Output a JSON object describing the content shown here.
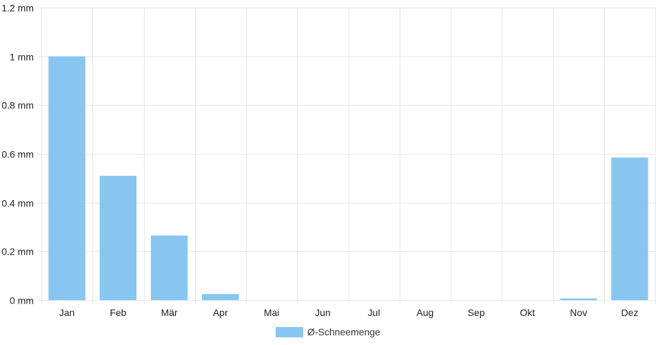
{
  "chart_data": {
    "type": "bar",
    "categories": [
      "Jan",
      "Feb",
      "Mär",
      "Apr",
      "Mai",
      "Jun",
      "Jul",
      "Aug",
      "Sep",
      "Okt",
      "Nov",
      "Dez"
    ],
    "series": [
      {
        "name": "Ø-Schneemenge",
        "values": [
          1.0,
          0.51,
          0.265,
          0.025,
          0,
          0,
          0,
          0,
          0,
          0,
          0.007,
          0.585
        ]
      }
    ],
    "ylim": [
      0,
      1.2
    ],
    "yticks": [
      0,
      0.2,
      0.4,
      0.6,
      0.8,
      1,
      1.2
    ],
    "ytick_labels": [
      "0 mm",
      "0.2 mm",
      "0.4 mm",
      "0.6 mm",
      "0.8 mm",
      "1 mm",
      "1.2 mm"
    ],
    "grid": true,
    "legend_position": "bottom",
    "colors": {
      "bar": "#88c6f1",
      "grid": "#e6e6e6",
      "text": "#222222"
    }
  }
}
